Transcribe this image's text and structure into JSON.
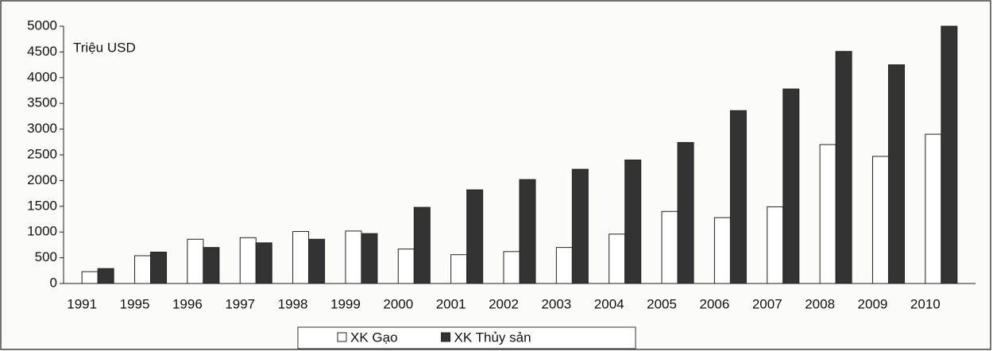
{
  "chart_data": {
    "type": "bar",
    "annotation": "Triệu USD",
    "categories": [
      "1991",
      "1995",
      "1996",
      "1997",
      "1998",
      "1999",
      "2000",
      "2001",
      "2002",
      "2003",
      "2004",
      "2005",
      "2006",
      "2007",
      "2008",
      "2009",
      "2010"
    ],
    "series": [
      {
        "name": "XK Gạo",
        "color": "#ffffff",
        "values": [
          230,
          540,
          860,
          890,
          1010,
          1020,
          670,
          560,
          620,
          700,
          960,
          1400,
          1280,
          1490,
          2700,
          2470,
          2900
        ]
      },
      {
        "name": "XK Thủy sản",
        "color": "#333333",
        "values": [
          290,
          610,
          700,
          790,
          860,
          970,
          1480,
          1820,
          2020,
          2220,
          2400,
          2740,
          3360,
          3780,
          4510,
          4250,
          5000
        ]
      }
    ],
    "ylim": [
      0,
      5000
    ],
    "yticks": [
      0,
      500,
      1000,
      1500,
      2000,
      2500,
      3000,
      3500,
      4000,
      4500,
      5000
    ],
    "grid": false,
    "legend": "bottom"
  }
}
